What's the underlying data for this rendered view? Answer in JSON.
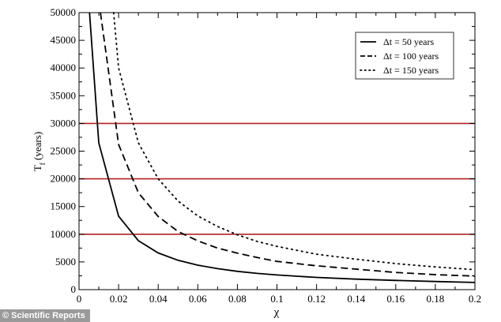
{
  "credit": "© Scientific Reports",
  "chart_data": {
    "type": "line",
    "title": "",
    "xlabel": "χ",
    "ylabel": "T_f (years)",
    "ylabel_main": "T",
    "ylabel_sub": "f",
    "ylabel_rest": " (years)",
    "xlim": [
      0,
      0.2
    ],
    "ylim": [
      0,
      50000
    ],
    "xticks": [
      "0",
      "0.02",
      "0.04",
      "0.06",
      "0.08",
      "0.1",
      "0.12",
      "0.14",
      "0.16",
      "0.18",
      "0.2"
    ],
    "yticks": [
      "0",
      "5000",
      "10000",
      "15000",
      "20000",
      "25000",
      "30000",
      "35000",
      "40000",
      "45000",
      "50000"
    ],
    "legend_position": "top-right",
    "reference_lines": {
      "values": [
        10000,
        20000,
        30000
      ],
      "color": "#b22222"
    },
    "series": [
      {
        "name": "Δt = 50 years",
        "style": "solid",
        "points": [
          [
            0.0053,
            50000
          ],
          [
            0.01,
            26500
          ],
          [
            0.02,
            13250
          ],
          [
            0.03,
            8830
          ],
          [
            0.04,
            6630
          ],
          [
            0.05,
            5300
          ],
          [
            0.06,
            4420
          ],
          [
            0.07,
            3790
          ],
          [
            0.08,
            3310
          ],
          [
            0.09,
            2940
          ],
          [
            0.1,
            2650
          ],
          [
            0.12,
            2210
          ],
          [
            0.14,
            1890
          ],
          [
            0.16,
            1660
          ],
          [
            0.18,
            1470
          ],
          [
            0.2,
            1300
          ]
        ]
      },
      {
        "name": "Δt = 100 years",
        "style": "dashed",
        "points": [
          [
            0.0108,
            50000
          ],
          [
            0.02,
            26200
          ],
          [
            0.03,
            17500
          ],
          [
            0.04,
            13200
          ],
          [
            0.05,
            10500
          ],
          [
            0.06,
            8800
          ],
          [
            0.07,
            7500
          ],
          [
            0.08,
            6600
          ],
          [
            0.09,
            5800
          ],
          [
            0.1,
            5100
          ],
          [
            0.12,
            4300
          ],
          [
            0.14,
            3700
          ],
          [
            0.16,
            3100
          ],
          [
            0.18,
            2700
          ],
          [
            0.2,
            2450
          ]
        ]
      },
      {
        "name": "Δt = 150 years",
        "style": "dotted",
        "points": [
          [
            0.0175,
            50000
          ],
          [
            0.02,
            40000
          ],
          [
            0.03,
            26500
          ],
          [
            0.04,
            20000
          ],
          [
            0.05,
            16000
          ],
          [
            0.06,
            13300
          ],
          [
            0.07,
            11400
          ],
          [
            0.08,
            9900
          ],
          [
            0.09,
            8700
          ],
          [
            0.1,
            7800
          ],
          [
            0.12,
            6400
          ],
          [
            0.14,
            5500
          ],
          [
            0.16,
            4700
          ],
          [
            0.18,
            4100
          ],
          [
            0.2,
            3600
          ]
        ]
      }
    ]
  }
}
